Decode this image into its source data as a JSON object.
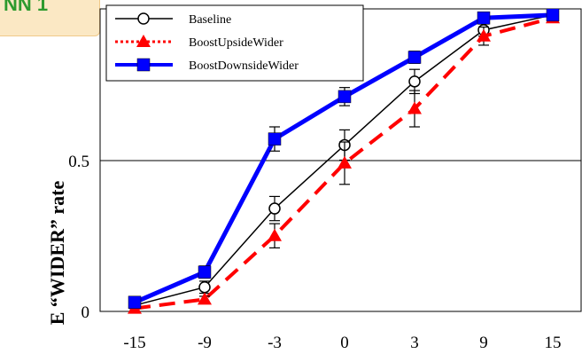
{
  "corner_tag": {
    "text": "NN 1"
  },
  "chart_data": {
    "type": "line",
    "x": [
      "-15",
      "-9",
      "-3",
      "0",
      "3",
      "9",
      "15"
    ],
    "ylabel": "E “WIDER” rate",
    "yticks": [
      "0",
      "0.5"
    ],
    "ylim": [
      0,
      1
    ],
    "grid": "horizontal at 0.5",
    "legend_position": "top-left",
    "series": [
      {
        "name": "Baseline",
        "color": "#000000",
        "marker": "open-circle",
        "line_style": "solid-thin",
        "values": [
          0.02,
          0.08,
          0.34,
          0.55,
          0.76,
          0.93,
          0.98
        ],
        "errors": [
          0.01,
          0.02,
          0.04,
          0.05,
          0.04,
          0.02,
          0.01
        ]
      },
      {
        "name": "BoostUpsideWider",
        "color": "#ff0000",
        "marker": "filled-triangle",
        "line_style": "dashed-thick",
        "values": [
          0.01,
          0.04,
          0.25,
          0.49,
          0.67,
          0.91,
          0.97
        ],
        "errors": [
          0.01,
          0.01,
          0.04,
          0.07,
          0.06,
          0.03,
          0.01
        ]
      },
      {
        "name": "BoostDownsideWider",
        "color": "#0000ff",
        "marker": "filled-square",
        "line_style": "solid-thick",
        "values": [
          0.03,
          0.13,
          0.57,
          0.71,
          0.84,
          0.97,
          0.98
        ],
        "errors": [
          0.01,
          0.02,
          0.04,
          0.03,
          0.02,
          0.01,
          0.01
        ]
      }
    ]
  }
}
